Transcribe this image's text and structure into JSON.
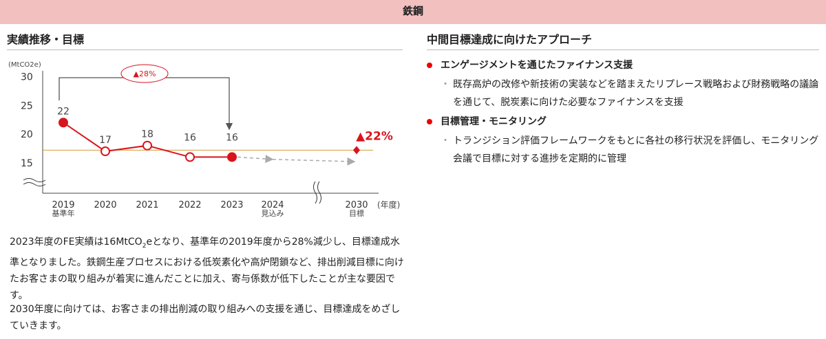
{
  "header": {
    "title": "鉄鋼"
  },
  "left": {
    "title": "実績推移・目標",
    "paragraph1_a": "2023年度のFE実績は16MtCO",
    "paragraph1_sub": "2",
    "paragraph1_b": "eとなり、基準年の2019年度から28%減少し、目標達成水準となりました。鉄鋼生産プロセスにおける低炭素化や高炉閉鎖など、排出削減目標に向けたお客さまの取り組みが着実に進んだことに加え、寄与係数が低下したことが主な要因です。",
    "paragraph2": "2030年度に向けては、お客さまの排出削減の取り組みへの支援を通じ、目標達成をめざしていきます。"
  },
  "right": {
    "title": "中間目標達成に向けたアプローチ",
    "items": [
      {
        "heading": "エンゲージメントを通じたファイナンス支援",
        "detail": "既存高炉の改修や新技術の実装などを踏まえたリプレース戦略および財務戦略の議論を通じて、脱炭素に向けた必要なファイナンスを支援"
      },
      {
        "heading": "目標管理・モニタリング",
        "detail": "トランジション評価フレームワークをもとに各社の移行状況を評価し、モニタリング会議で目標に対する進捗を定期的に管理"
      }
    ]
  },
  "chart_data": {
    "type": "line",
    "ylabel": "(MtCO2e)",
    "xlabel": "(年度)",
    "yticks": [
      30,
      25,
      20,
      15
    ],
    "ylim": [
      12,
      30
    ],
    "categories": [
      "2019",
      "2020",
      "2021",
      "2022",
      "2023",
      "2024",
      "2030"
    ],
    "sublabels": [
      "基準年",
      "",
      "",
      "",
      "",
      "見込み",
      "目標"
    ],
    "actual": [
      {
        "x": "2019",
        "y": 22,
        "label": "22",
        "filled": true
      },
      {
        "x": "2020",
        "y": 17,
        "label": "17",
        "filled": false
      },
      {
        "x": "2021",
        "y": 18,
        "label": "18",
        "filled": false
      },
      {
        "x": "2022",
        "y": 16,
        "label": "16",
        "filled": false
      },
      {
        "x": "2023",
        "y": 16,
        "label": "16",
        "filled": true
      }
    ],
    "projection": [
      {
        "x": "2023",
        "y": 16
      },
      {
        "x": "2024",
        "y": 15.6
      },
      {
        "x": "2030",
        "y": 15.2
      }
    ],
    "target": {
      "x": "2030",
      "y": 17.2,
      "label": "▲22%"
    },
    "reduction_annotation": "▲28%",
    "colors": {
      "actual": "#d9141c",
      "target_line": "#d89a3a",
      "projection": "#aaaaaa",
      "arrow": "#555555"
    }
  }
}
